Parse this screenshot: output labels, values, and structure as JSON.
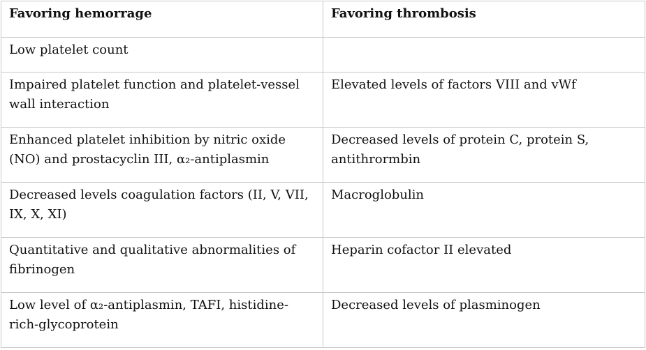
{
  "table": {
    "headers": [
      "Favoring hemorrage",
      "Favoring thrombosis"
    ],
    "rows": [
      [
        "Low platelet count",
        ""
      ],
      [
        "Impaired platelet function and platelet-vessel wall interaction",
        "Elevated levels of factors VIII and vWf"
      ],
      [
        "Enhanced platelet inhibition by nitric oxide (NO) and prostacyclin III, α₂-antiplasmin",
        "Decreased levels of protein C, protein S, antithrormbin"
      ],
      [
        "Decreased levels coagulation factors (II, V, VII, IX, X, XI)",
        "Macroglobulin"
      ],
      [
        "Quantitative and qualitative abnormalities of fibrinogen",
        "Heparin cofactor II elevated"
      ],
      [
        "Low level of α₂-antiplasmin, TAFI, histidine-rich-glycoprotein",
        "Decreased levels of plasminogen"
      ]
    ]
  }
}
